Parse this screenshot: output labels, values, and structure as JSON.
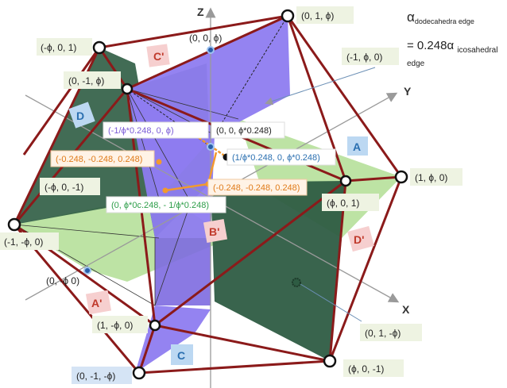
{
  "axes": {
    "z": "Z",
    "y": "Y",
    "x": "X"
  },
  "formula": {
    "alpha_sub_top": "dodecahedra edge",
    "equals": "= 0.248",
    "alpha_sub_bottom": "icosahedral",
    "trailing": "edge"
  },
  "vertex_labels": [
    "(0, 1, ϕ)",
    "(-ϕ, 0, 1)",
    "(0, 0, ϕ)",
    "(-1, ϕ, 0)",
    "(0, -1, ϕ)",
    "(1, ϕ, 0)",
    "(ϕ, 0, 1)",
    "(-ϕ, 0, -1)",
    "(-1, -ϕ, 0)",
    "(0, -ϕ 0)",
    "(1, -ϕ, 0)",
    "(0, 1, -ϕ)",
    "(0, -1, -ϕ)",
    "(ϕ, 0, -1)"
  ],
  "point_labels": {
    "p1": "(-1/ϕ*0.248, 0, ϕ)",
    "p2": "(0, 0, ϕ*0.248)",
    "p3": "(1/ϕ*0.248, 0, ϕ*0.248)",
    "p4": "(-0.248, -0.248, 0.248)",
    "p5": "(-0.248, -0.248, 0.248)",
    "p6": "(0, ϕ*0c.248, - 1/ϕ*0.248)"
  },
  "face_tags": [
    "C'",
    "D",
    "A",
    "B'",
    "D'",
    "A'",
    "C"
  ],
  "colors": {
    "edge": "#8b1a1a",
    "purple": "#8e7cf0",
    "dark_green": "#2e5c43",
    "light_green": "#b6e09a",
    "label_bg": "#eef3e2",
    "tag_red_bg": "#f6cfcf",
    "tag_red_fg": "#c0392b",
    "tag_blue_bg": "#bcd8f2",
    "tag_blue_fg": "#2a6fb0"
  }
}
